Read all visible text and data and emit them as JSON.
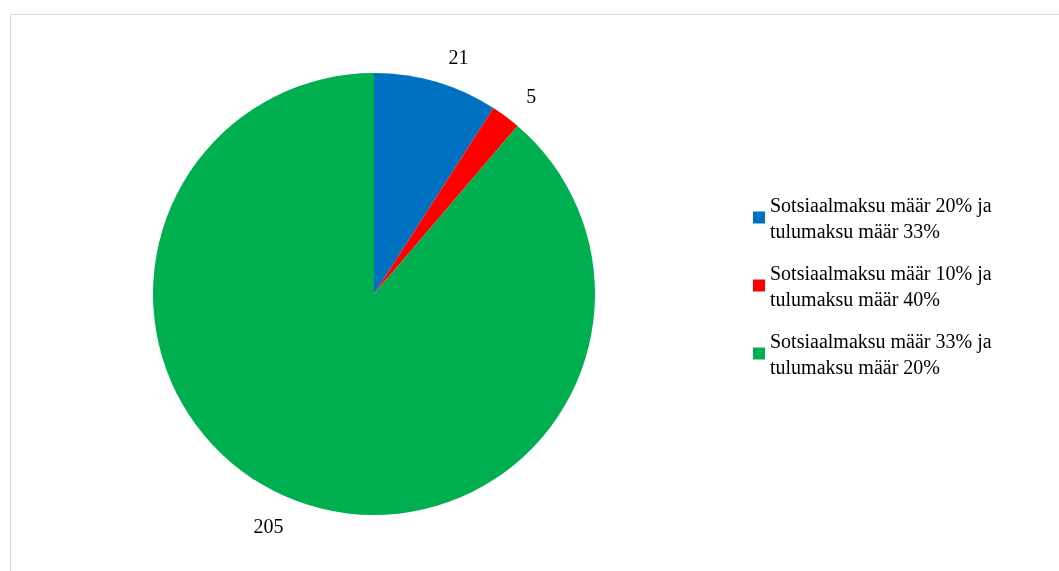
{
  "chart_data": {
    "type": "pie",
    "categories": [
      "Sotsiaalmaksu määr 20% ja tulumaksu määr 33%",
      "Sotsiaalmaksu määr 10% ja tulumaksu määr 40%",
      "Sotsiaalmaksu määr 33% ja tulumaksu määr 20%"
    ],
    "values": [
      21,
      5,
      205
    ],
    "colors": [
      "#0070c0",
      "#ff0000",
      "#00b050"
    ],
    "data_labels": true,
    "legend": "right"
  }
}
